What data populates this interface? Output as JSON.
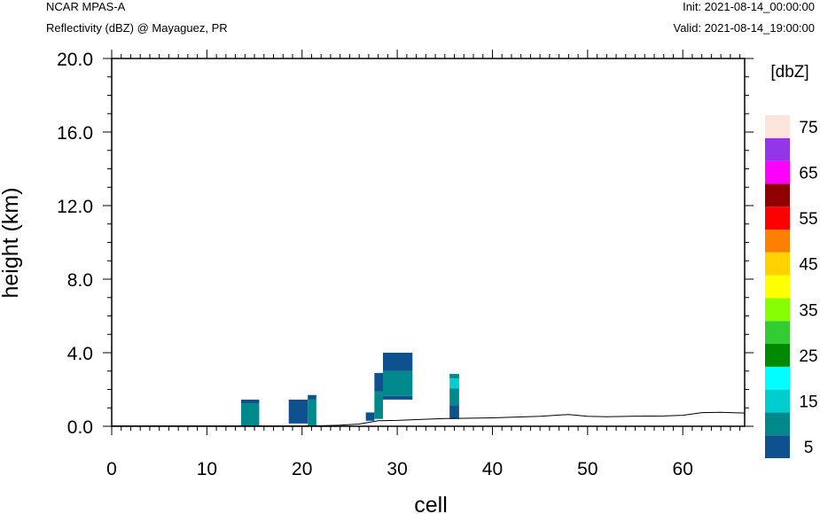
{
  "header": {
    "source": "NCAR MPAS-A",
    "field": "Reflectivity (dBZ) @ Mayaguez, PR",
    "init": "Init: 2021-08-14_00:00:00",
    "valid": "Valid: 2021-08-14_19:00:00"
  },
  "chart_data": {
    "type": "heatmap",
    "xlabel": "cell",
    "ylabel": "height (km)",
    "xlim": [
      0,
      66.5
    ],
    "ylim": [
      0,
      20
    ],
    "x_ticks": [
      0,
      10,
      20,
      30,
      40,
      50,
      60
    ],
    "x_tick_labels": [
      "0",
      "10",
      "20",
      "30",
      "40",
      "50",
      "60"
    ],
    "y_ticks": [
      0,
      4,
      8,
      12,
      16,
      20
    ],
    "y_tick_labels": [
      "0.0",
      "4.0",
      "8.0",
      "12.0",
      "16.0",
      "20.0"
    ],
    "colorbar": {
      "units": "[dbZ]",
      "levels": [
        5,
        10,
        15,
        20,
        25,
        30,
        35,
        40,
        45,
        50,
        55,
        60,
        65,
        70,
        75
      ],
      "colors": [
        "#0f508e",
        "#00898a",
        "#00cece",
        "#00ffff",
        "#008a00",
        "#33cc33",
        "#88ff00",
        "#ffff00",
        "#ffd200",
        "#ff8000",
        "#ff0000",
        "#900000",
        "#ff00ff",
        "#9336ea",
        "#ffe4dc"
      ],
      "tick_labels": [
        "5",
        "15",
        "25",
        "35",
        "45",
        "55",
        "65",
        "75"
      ]
    },
    "cells": [
      {
        "x0": 13.6,
        "x1": 15.5,
        "y0": 0.0,
        "y1": 1.25,
        "dbz": 10
      },
      {
        "x0": 13.6,
        "x1": 15.5,
        "y0": 1.25,
        "y1": 1.45,
        "dbz": 5
      },
      {
        "x0": 18.6,
        "x1": 20.6,
        "y0": 0.15,
        "y1": 1.45,
        "dbz": 5
      },
      {
        "x0": 20.6,
        "x1": 21.5,
        "y0": 0.05,
        "y1": 1.45,
        "dbz": 10
      },
      {
        "x0": 20.6,
        "x1": 21.5,
        "y0": 1.45,
        "y1": 1.7,
        "dbz": 5
      },
      {
        "x0": 26.7,
        "x1": 27.6,
        "y0": 0.3,
        "y1": 0.75,
        "dbz": 5
      },
      {
        "x0": 27.6,
        "x1": 28.5,
        "y0": 0.4,
        "y1": 1.9,
        "dbz": 10
      },
      {
        "x0": 27.6,
        "x1": 28.5,
        "y0": 1.9,
        "y1": 2.9,
        "dbz": 5
      },
      {
        "x0": 28.5,
        "x1": 31.6,
        "y0": 1.45,
        "y1": 1.65,
        "dbz": 5
      },
      {
        "x0": 28.5,
        "x1": 31.6,
        "y0": 1.65,
        "y1": 3.0,
        "dbz": 10
      },
      {
        "x0": 28.5,
        "x1": 31.6,
        "y0": 3.0,
        "y1": 4.0,
        "dbz": 5
      },
      {
        "x0": 35.5,
        "x1": 36.5,
        "y0": 0.4,
        "y1": 1.15,
        "dbz": 5
      },
      {
        "x0": 35.5,
        "x1": 36.5,
        "y0": 1.15,
        "y1": 2.05,
        "dbz": 10
      },
      {
        "x0": 35.5,
        "x1": 36.5,
        "y0": 2.05,
        "y1": 2.6,
        "dbz": 15
      },
      {
        "x0": 35.5,
        "x1": 36.5,
        "y0": 2.6,
        "y1": 2.85,
        "dbz": 10
      }
    ],
    "terrain": {
      "x": [
        0,
        20,
        22,
        24,
        26,
        28,
        30,
        32,
        35,
        40,
        45,
        48,
        50,
        52,
        55,
        58,
        60,
        62,
        64,
        66.5
      ],
      "y": [
        0.02,
        0.02,
        0.03,
        0.06,
        0.12,
        0.3,
        0.32,
        0.36,
        0.42,
        0.46,
        0.54,
        0.64,
        0.54,
        0.52,
        0.55,
        0.56,
        0.6,
        0.74,
        0.76,
        0.72
      ]
    }
  }
}
